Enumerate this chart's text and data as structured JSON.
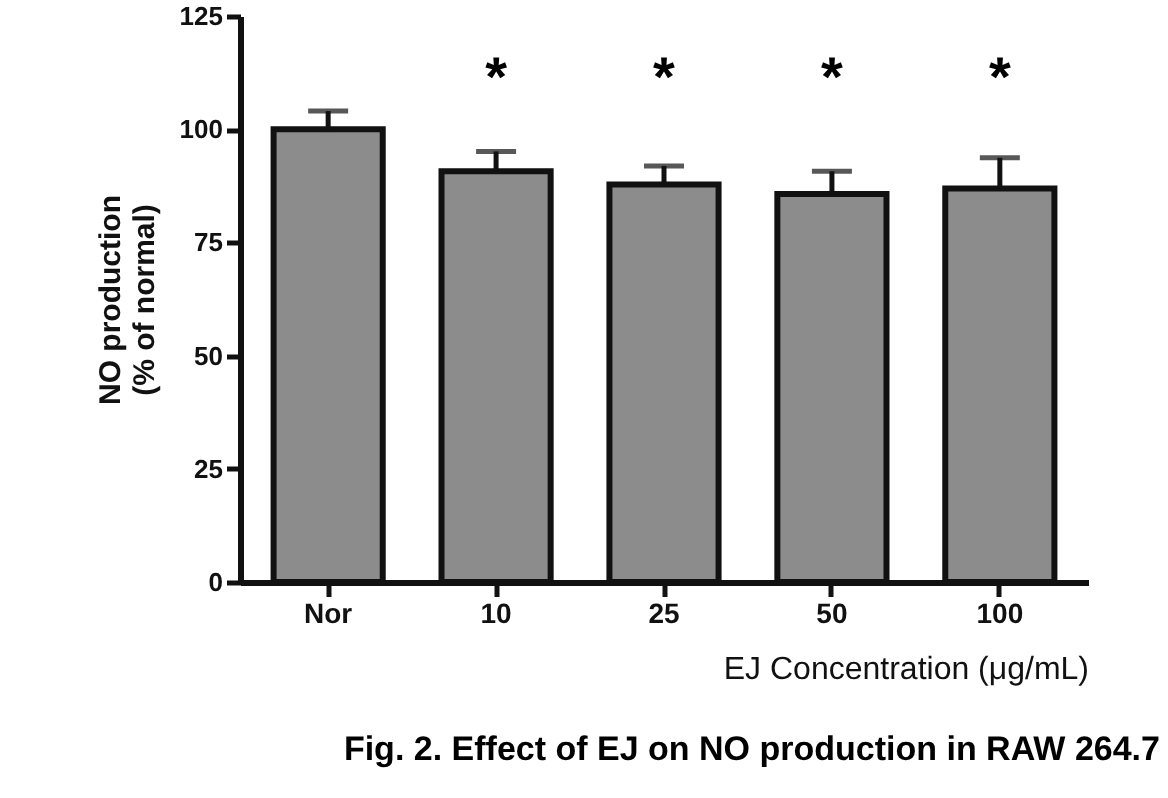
{
  "chart_data": {
    "type": "bar",
    "categories": [
      "Nor",
      "10",
      "25",
      "50",
      "100"
    ],
    "values": [
      100,
      90.7,
      87.8,
      85.7,
      86.9
    ],
    "errors": [
      [
        100,
        104
      ],
      [
        90.7,
        95.1
      ],
      [
        87.8,
        91.9
      ],
      [
        85.7,
        90.7
      ],
      [
        86.9,
        93.7
      ]
    ],
    "color": "#8c8c8c",
    "xlabel": "EJ Concentration (μg/mL)",
    "ylabel": "NO production\n(% of normal)",
    "ylim": [
      0,
      125
    ],
    "yticks": [
      0,
      25,
      50,
      75,
      100,
      125
    ],
    "grid": false,
    "annotations": [
      "*",
      "*",
      "*",
      "*",
      "Fig. 2. Effect of EJ on NO production in RAW 264.7"
    ]
  }
}
